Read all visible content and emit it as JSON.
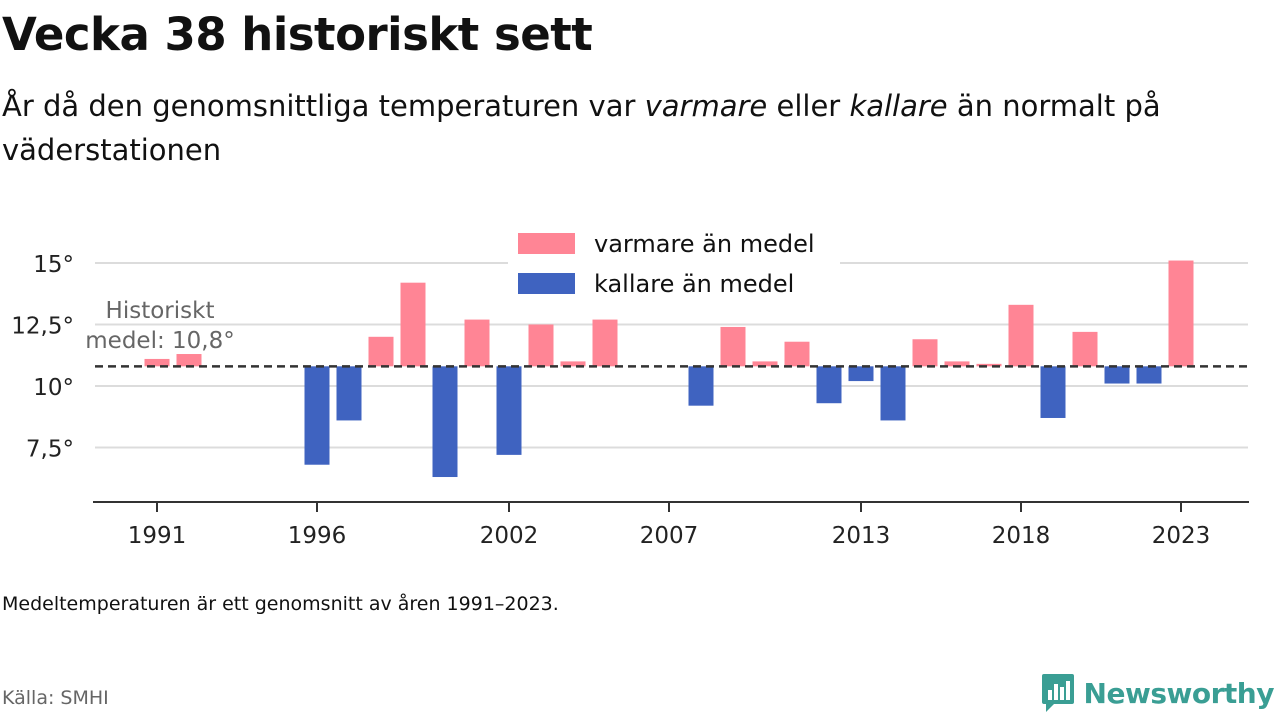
{
  "header": {
    "title": "Vecka 38 historiskt sett",
    "subtitle_prefix": "År då den genomsnittliga temperaturen var ",
    "subtitle_warm": "varmare",
    "subtitle_mid": " eller ",
    "subtitle_cold": "kallare",
    "subtitle_suffix": " än normalt på väderstationen"
  },
  "footer": {
    "note": "Medeltemperaturen är ett genomsnitt av åren 1991–2023.",
    "source": "Källa: SMHI",
    "brand": "Newsworthy"
  },
  "colors": {
    "warm": "#ff8595",
    "cold": "#3f63c0",
    "brand": "#3a9e94"
  },
  "chart_data": {
    "type": "bar",
    "title": "Vecka 38 historiskt sett",
    "baseline": 10.8,
    "baseline_label_line1": "Historiskt",
    "baseline_label_line2": "medel: 10,8°",
    "ylim": [
      5.5,
      15.5
    ],
    "yticks": [
      {
        "value": 7.5,
        "label": "7,5°"
      },
      {
        "value": 10,
        "label": "10°"
      },
      {
        "value": 12.5,
        "label": "12,5°"
      },
      {
        "value": 15,
        "label": "15°"
      }
    ],
    "xticks": [
      1991,
      1996,
      2002,
      2007,
      2013,
      2018,
      2023
    ],
    "legend": {
      "position": "top-center",
      "warm_label": "varmare än medel",
      "cold_label": "kallare än medel"
    },
    "series": [
      {
        "year": 1991,
        "value": 11.1
      },
      {
        "year": 1992,
        "value": 11.3
      },
      {
        "year": 1996,
        "value": 6.8
      },
      {
        "year": 1997,
        "value": 8.6
      },
      {
        "year": 1998,
        "value": 12.0
      },
      {
        "year": 1999,
        "value": 14.2
      },
      {
        "year": 2000,
        "value": 6.3
      },
      {
        "year": 2001,
        "value": 12.7
      },
      {
        "year": 2002,
        "value": 7.2
      },
      {
        "year": 2003,
        "value": 12.5
      },
      {
        "year": 2004,
        "value": 11.0
      },
      {
        "year": 2005,
        "value": 12.7
      },
      {
        "year": 2008,
        "value": 9.2
      },
      {
        "year": 2009,
        "value": 12.4
      },
      {
        "year": 2010,
        "value": 11.0
      },
      {
        "year": 2011,
        "value": 11.8
      },
      {
        "year": 2012,
        "value": 9.3
      },
      {
        "year": 2013,
        "value": 10.2
      },
      {
        "year": 2014,
        "value": 8.6
      },
      {
        "year": 2015,
        "value": 11.9
      },
      {
        "year": 2016,
        "value": 11.0
      },
      {
        "year": 2017,
        "value": 10.9
      },
      {
        "year": 2018,
        "value": 13.3
      },
      {
        "year": 2019,
        "value": 8.7
      },
      {
        "year": 2020,
        "value": 12.2
      },
      {
        "year": 2021,
        "value": 10.1
      },
      {
        "year": 2022,
        "value": 10.1
      },
      {
        "year": 2023,
        "value": 15.1
      }
    ]
  }
}
